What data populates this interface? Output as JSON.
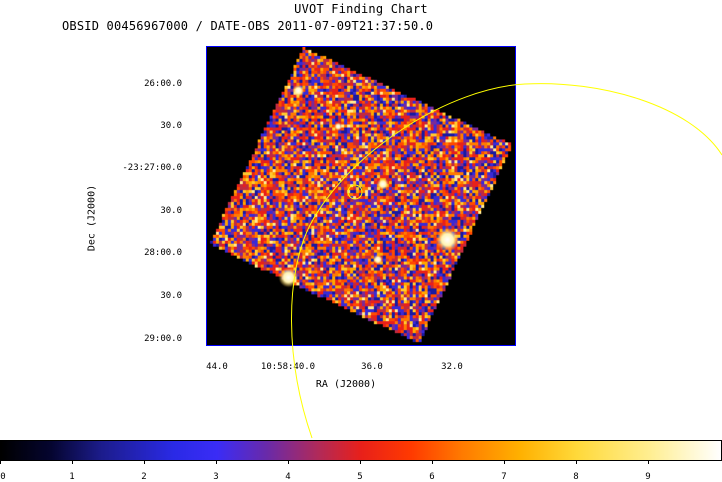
{
  "title": "UVOT Finding Chart",
  "subtitle": "OBSID 00456967000 / DATE-OBS 2011-07-09T21:37:50.0",
  "axes": {
    "dec_label": "Dec (J2000)",
    "ra_label": "RA (J2000)",
    "dec_ticks": [
      "26:00.0",
      "30.0",
      "-23:27:00.0",
      "30.0",
      "28:00.0",
      "30.0",
      "29:00.0"
    ],
    "ra_ticks": [
      "44.0",
      "10:58:40.0",
      "36.0",
      "32.0"
    ]
  },
  "colorbar": {
    "ticks": [
      "0",
      "1",
      "2",
      "3",
      "4",
      "5",
      "6",
      "7",
      "8",
      "9"
    ]
  },
  "colors": {
    "axis_frame": "#0000ff",
    "overlay_circle": "#ffff00",
    "background": "#000000"
  }
}
